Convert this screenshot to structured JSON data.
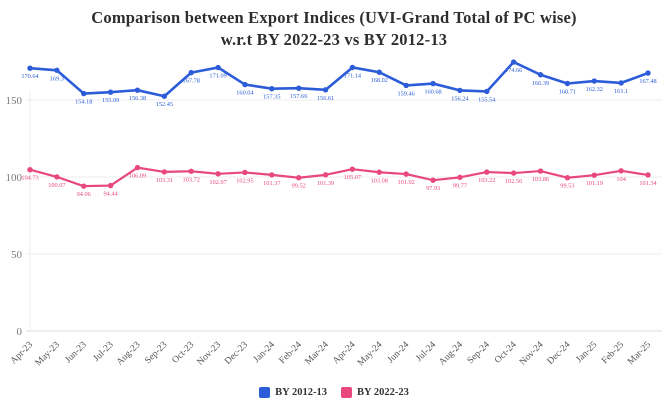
{
  "title": {
    "line1": "Comparison between Export Indices (UVI-Grand Total of PC wise)",
    "line2": "w.r.t BY 2022-23 vs BY 2012-13"
  },
  "chart_data": {
    "type": "line",
    "categories": [
      "Apr-23",
      "May-23",
      "Jun-23",
      "Jul-23",
      "Aug-23",
      "Sep-23",
      "Oct-23",
      "Nov-23",
      "Dec-23",
      "Jan-24",
      "Feb-24",
      "Mar-24",
      "Apr-24",
      "May-24",
      "Jun-24",
      "Jul-24",
      "Aug-24",
      "Sep-24",
      "Oct-24",
      "Nov-24",
      "Dec-24",
      "Jan-25",
      "Feb-25",
      "Mar-25"
    ],
    "series": [
      {
        "name": "BY 2012-13",
        "color": "#2c5cd8",
        "values": [
          170.64,
          169.3,
          154.18,
          155.09,
          156.38,
          152.45,
          167.78,
          171.09,
          160.04,
          157.35,
          157.66,
          156.61,
          171.14,
          168.02,
          159.46,
          160.68,
          156.24,
          155.54,
          174.66,
          166.39,
          160.71,
          162.32,
          161.1,
          167.48
        ]
      },
      {
        "name": "BY 2022-23",
        "color": "#e8487c",
        "values": [
          104.73,
          100.07,
          94.06,
          94.44,
          106.09,
          103.31,
          103.72,
          102.07,
          102.95,
          101.37,
          99.52,
          101.39,
          105.07,
          103.08,
          101.92,
          97.93,
          99.77,
          103.22,
          102.56,
          103.86,
          99.53,
          101.19,
          104,
          101.34
        ]
      }
    ],
    "title": "Comparison between Export Indices (UVI-Grand Total of PC wise) w.r.t BY 2022-23 vs BY 2012-13",
    "xlabel": "",
    "ylabel": "",
    "ylim": [
      0,
      180
    ],
    "yticks": [
      0,
      50,
      100,
      150
    ],
    "grid": true,
    "legend_position": "bottom",
    "point_labels_visible": true
  }
}
